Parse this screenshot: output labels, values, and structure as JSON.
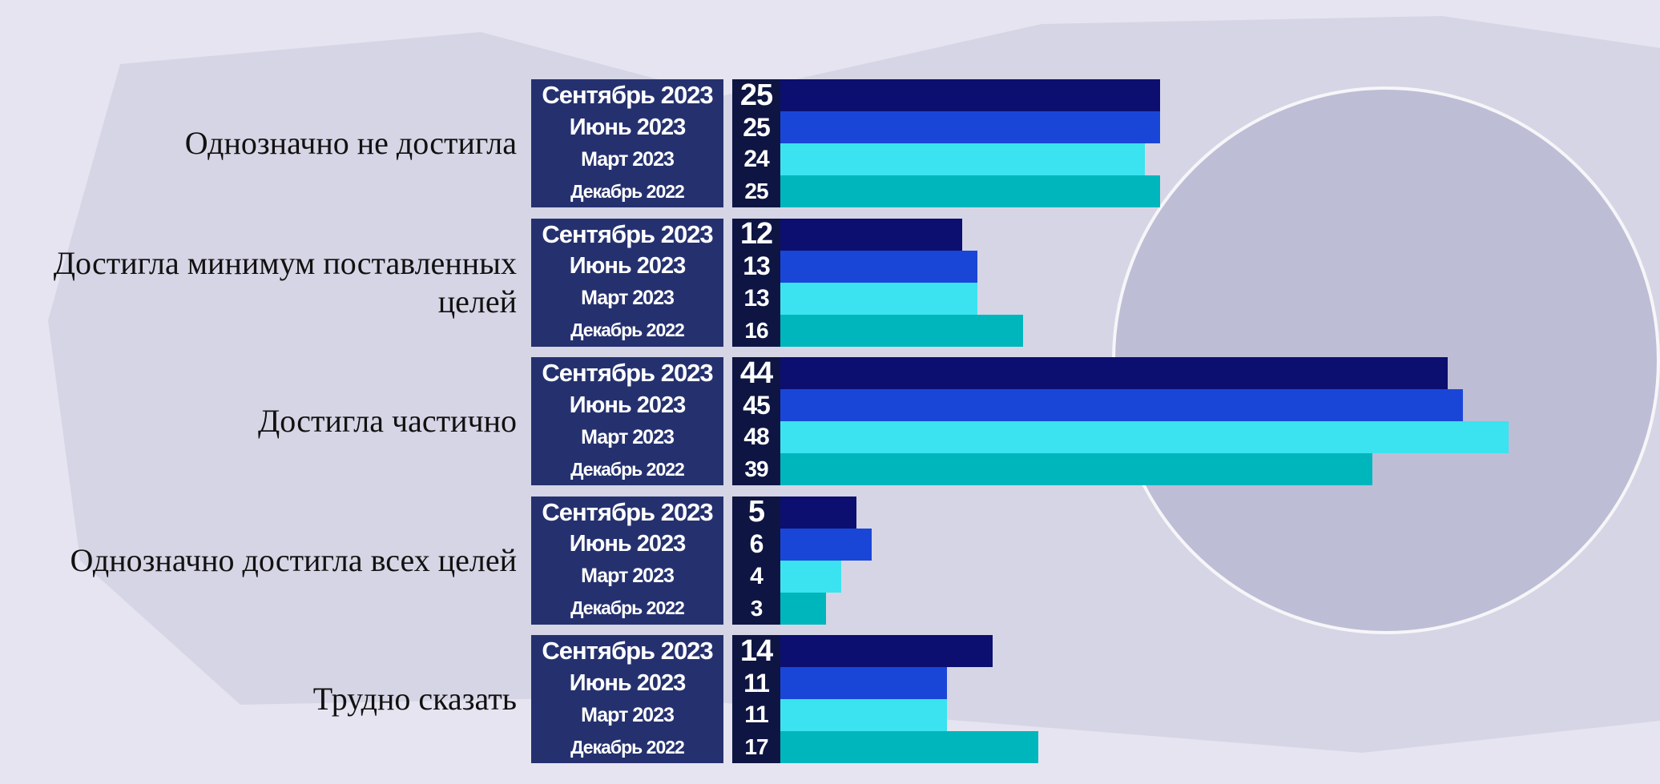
{
  "chart_data": {
    "type": "bar",
    "orientation": "horizontal",
    "categories": [
      "Однозначно не достигла",
      "Достигла минимум поставленных целей",
      "Достигла частично",
      "Однозначно достигла всех целей",
      "Трудно сказать"
    ],
    "series": [
      {
        "name": "Сентябрь 2023",
        "color": "#0c0f6f",
        "values": [
          25,
          12,
          44,
          5,
          14
        ]
      },
      {
        "name": "Июнь 2023",
        "color": "#1a46d8",
        "values": [
          25,
          13,
          45,
          6,
          11
        ]
      },
      {
        "name": "Март 2023",
        "color": "#3ae3ef",
        "values": [
          24,
          13,
          48,
          4,
          11
        ]
      },
      {
        "name": "Декабрь 2022",
        "color": "#00b6bd",
        "values": [
          25,
          16,
          39,
          3,
          17
        ]
      }
    ]
  }
}
